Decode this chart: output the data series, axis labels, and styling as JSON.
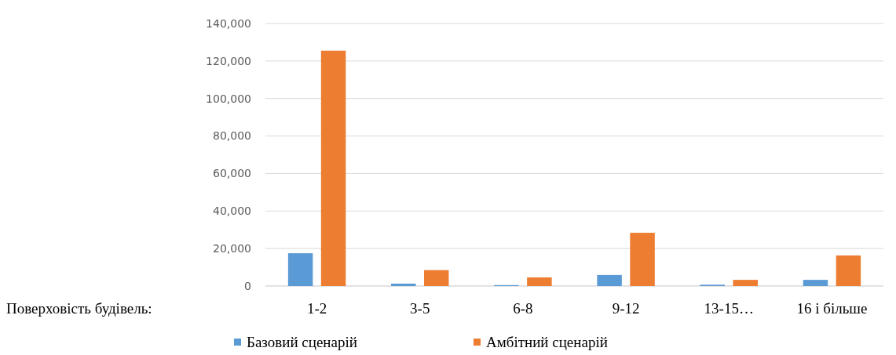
{
  "chart_data": {
    "type": "bar",
    "xlabel": "Поверховість будівель:",
    "categories": [
      "1-2",
      "3-5",
      "6-8",
      "9-12",
      "13-15…",
      "16 і більше"
    ],
    "series": [
      {
        "name": "Базовий сценарій",
        "color": "#5b9bd5",
        "values": [
          17500,
          1300,
          500,
          5900,
          700,
          3300
        ]
      },
      {
        "name": "Амбітний сценарій",
        "color": "#ed7d31",
        "values": [
          125500,
          8500,
          4600,
          28400,
          3300,
          16300
        ]
      }
    ],
    "ylim": [
      0,
      140000
    ],
    "yticks": [
      {
        "value": 0,
        "label": "0"
      },
      {
        "value": 20000,
        "label": "20,000"
      },
      {
        "value": 40000,
        "label": "40,000"
      },
      {
        "value": 60000,
        "label": "60,000"
      },
      {
        "value": 80000,
        "label": "80,000"
      },
      {
        "value": 100000,
        "label": "100,000"
      },
      {
        "value": 120000,
        "label": "120,000"
      },
      {
        "value": 140000,
        "label": "140,000"
      }
    ],
    "grid": "y",
    "legend": "bottom"
  }
}
